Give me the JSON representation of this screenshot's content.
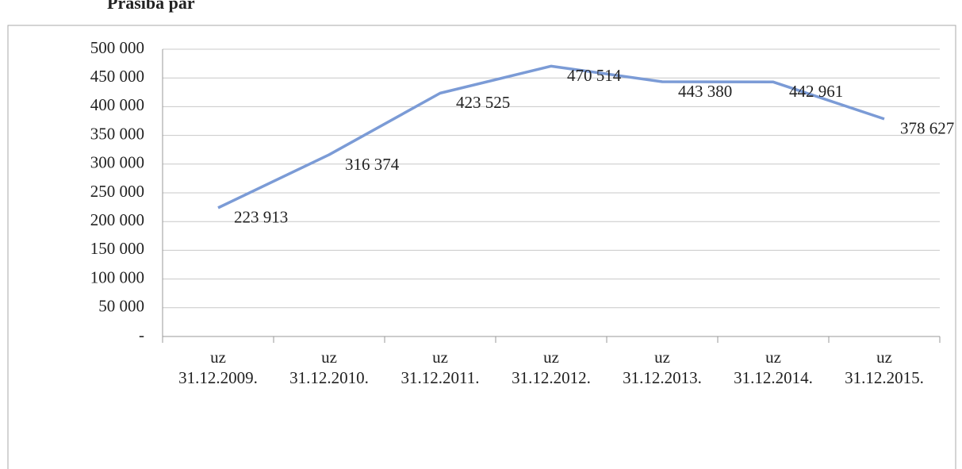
{
  "chart_data": {
    "type": "line",
    "title": "Prasība par",
    "categories": [
      [
        "uz",
        "31.12.2009."
      ],
      [
        "uz",
        "31.12.2010."
      ],
      [
        "uz",
        "31.12.2011."
      ],
      [
        "uz",
        "31.12.2012."
      ],
      [
        "uz",
        "31.12.2013."
      ],
      [
        "uz",
        "31.12.2014."
      ],
      [
        "uz",
        "31.12.2015."
      ]
    ],
    "values": [
      223913,
      316374,
      423525,
      470514,
      443380,
      442961,
      378627
    ],
    "value_labels": [
      "223 913",
      "316 374",
      "423 525",
      "470 514",
      "443 380",
      "442 961",
      "378 627"
    ],
    "color": "#7b9bd6",
    "ylim": [
      0,
      500000
    ],
    "yticks": [
      {
        "value": 0,
        "label": "-"
      },
      {
        "value": 50000,
        "label": "50 000"
      },
      {
        "value": 100000,
        "label": "100 000"
      },
      {
        "value": 150000,
        "label": "150 000"
      },
      {
        "value": 200000,
        "label": "200 000"
      },
      {
        "value": 250000,
        "label": "250 000"
      },
      {
        "value": 300000,
        "label": "300 000"
      },
      {
        "value": 350000,
        "label": "350 000"
      },
      {
        "value": 400000,
        "label": "400 000"
      },
      {
        "value": 450000,
        "label": "450 000"
      },
      {
        "value": 500000,
        "label": "500 000"
      }
    ],
    "grid": true
  }
}
